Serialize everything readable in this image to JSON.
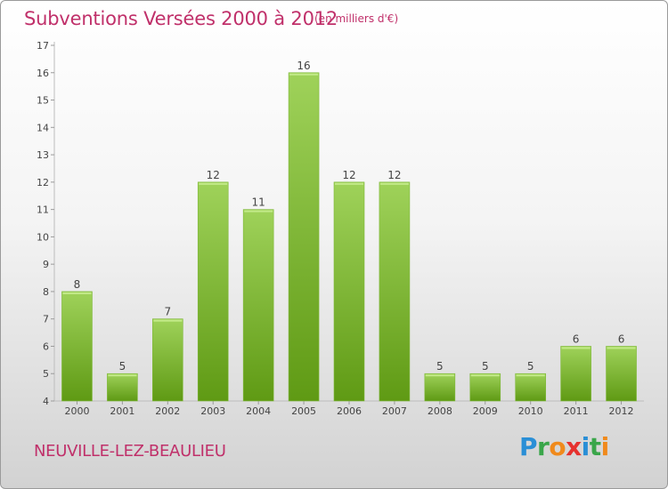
{
  "header": {
    "title": "Subventions Versées 2000 à 2012",
    "subtitle": "(en milliers d'€)"
  },
  "footer": {
    "commune": "NEUVILLE-LEZ-BEAULIEU",
    "logo_text": "Proxiti"
  },
  "colors": {
    "title": "#c0306a",
    "bar_top": "#9fd25a",
    "bar_bottom": "#5f9a14"
  },
  "chart_data": {
    "type": "bar",
    "title": "Subventions Versées 2000 à 2012",
    "subtitle": "(en milliers d'€)",
    "xlabel": "",
    "ylabel": "",
    "categories": [
      "2000",
      "2001",
      "2002",
      "2003",
      "2004",
      "2005",
      "2006",
      "2007",
      "2008",
      "2009",
      "2010",
      "2011",
      "2012"
    ],
    "values": [
      8,
      5,
      7,
      12,
      11,
      16,
      12,
      12,
      5,
      5,
      5,
      6,
      6
    ],
    "ylim": [
      4,
      17
    ],
    "yticks": [
      4,
      5,
      6,
      7,
      8,
      9,
      10,
      11,
      12,
      13,
      14,
      15,
      16,
      17
    ],
    "grid": false,
    "data_labels": true
  }
}
